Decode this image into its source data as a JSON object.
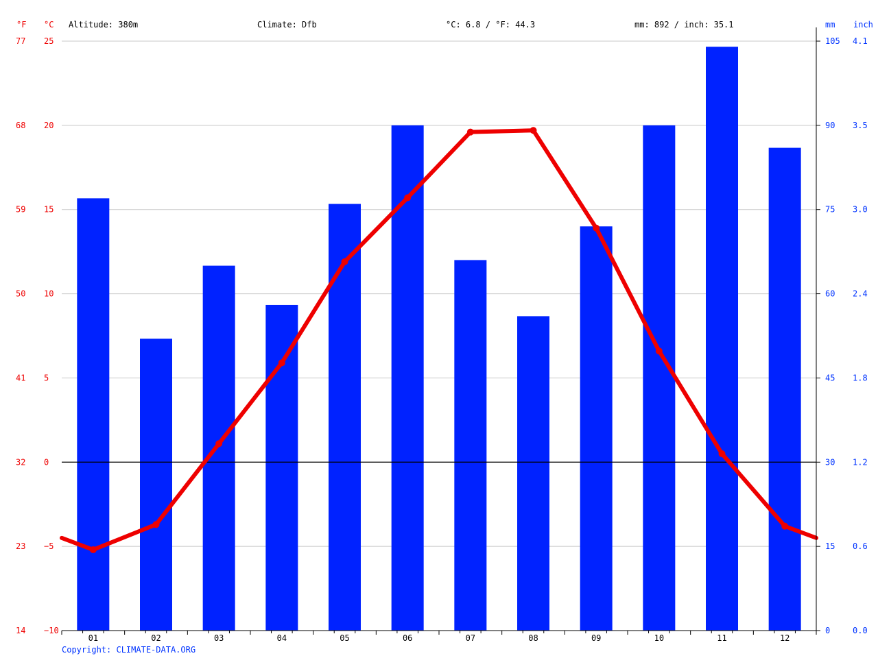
{
  "header": {
    "unit_f": "°F",
    "unit_c": "°C",
    "altitude": "Altitude: 380m",
    "climate": "Climate: Dfb",
    "temp_summary": "°C: 6.8 / °F: 44.3",
    "precip_summary": "mm: 892 / inch: 35.1",
    "unit_mm": "mm",
    "unit_inch": "inch"
  },
  "footer": {
    "copyright": "Copyright: CLIMATE-DATA.ORG"
  },
  "colors": {
    "temperature": "#ee0000",
    "precipitation": "#0022ff",
    "grid": "#c8c8c8",
    "zero_line": "#000000"
  },
  "chart_data": {
    "type": "bar",
    "categories": [
      "01",
      "02",
      "03",
      "04",
      "05",
      "06",
      "07",
      "08",
      "09",
      "10",
      "11",
      "12"
    ],
    "series": [
      {
        "values": [
          77,
          52,
          65,
          58,
          76,
          90,
          66,
          56,
          72,
          90,
          104,
          86
        ],
        "axis": "right-mm",
        "kind": "bar"
      },
      {
        "values": [
          -5.2,
          -3.7,
          1.1,
          5.9,
          11.9,
          15.7,
          19.6,
          19.7,
          13.9,
          6.6,
          0.5,
          -3.8
        ],
        "axis": "left-celsius",
        "kind": "line"
      }
    ],
    "line_edge_values": {
      "start": -4.5,
      "end": -4.5
    },
    "y_left_celsius": {
      "ylim": [
        -10,
        25
      ],
      "ticks": [
        -10,
        -5,
        0,
        5,
        10,
        15,
        20,
        25
      ]
    },
    "y_left_fahrenheit": {
      "ticks": [
        14,
        23,
        32,
        41,
        50,
        59,
        68,
        77
      ]
    },
    "y_right_mm": {
      "ylim": [
        0,
        105
      ],
      "ticks": [
        0,
        15,
        30,
        45,
        60,
        75,
        90,
        105
      ]
    },
    "y_right_inch": {
      "ticks": [
        "0.0",
        "0.6",
        "1.2",
        "1.8",
        "2.4",
        "3.0",
        "3.5",
        "4.1"
      ]
    },
    "grid": true
  }
}
